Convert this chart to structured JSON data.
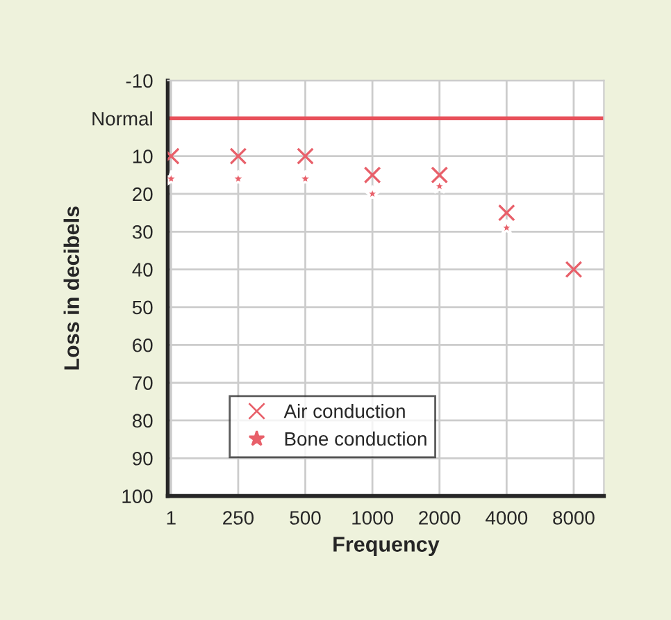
{
  "chart_data": {
    "type": "scatter",
    "xlabel": "Frequency",
    "ylabel": "Loss in decibels",
    "categories": [
      "1",
      "250",
      "500",
      "1000",
      "2000",
      "4000",
      "8000"
    ],
    "series": [
      {
        "name": "Air conduction",
        "color": "#e8606a",
        "marker": "cross",
        "values": [
          10,
          10,
          10,
          15,
          15,
          25,
          40
        ]
      },
      {
        "name": "Bone conduction",
        "color": "#e8606a",
        "marker": "star",
        "values": [
          16,
          16,
          16,
          20,
          18,
          29,
          null
        ]
      }
    ],
    "ylim": [
      100,
      -10
    ],
    "yticks": [
      -10,
      {
        "value": 0,
        "label": "Normal"
      },
      10,
      20,
      30,
      40,
      50,
      60,
      70,
      80,
      90,
      100
    ],
    "ref_lines": [
      {
        "axis": "y",
        "value": 0,
        "label": null,
        "color": "#e8505a"
      }
    ],
    "grid": true,
    "legend": "bottom left"
  }
}
